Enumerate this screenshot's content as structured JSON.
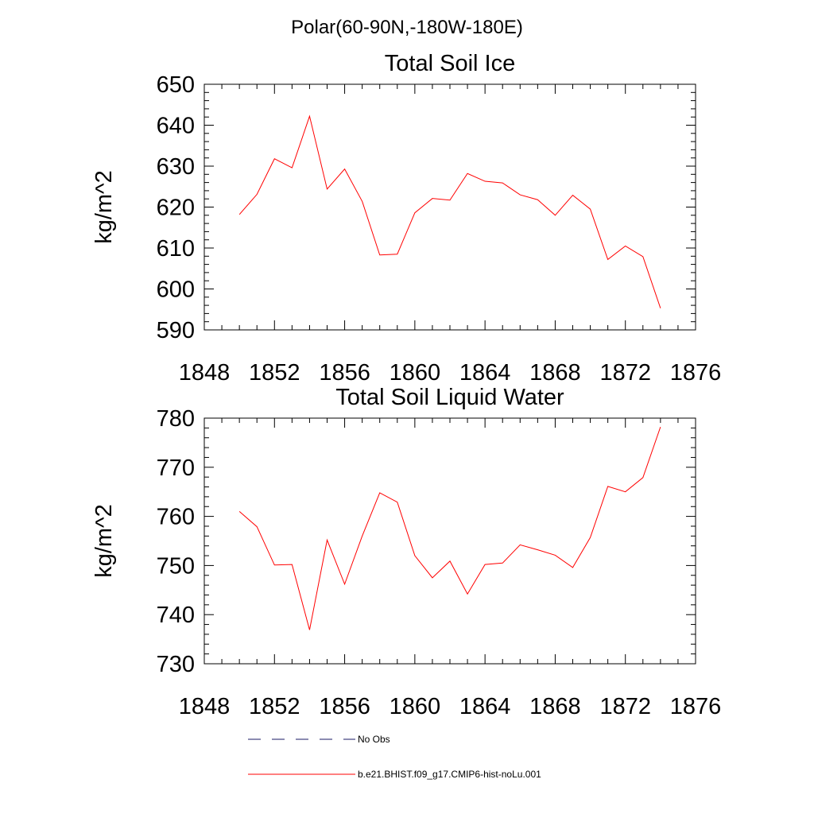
{
  "figure": {
    "title": "Polar(60-90N,-180W-180E)"
  },
  "chart_data": [
    {
      "type": "line",
      "title": "Total Soil Ice",
      "xlabel": "",
      "ylabel": "kg/m^2",
      "xlim": [
        1848,
        1876
      ],
      "ylim": [
        590,
        650
      ],
      "x_ticks": [
        1848,
        1852,
        1856,
        1860,
        1864,
        1868,
        1872,
        1876
      ],
      "y_ticks": [
        590,
        600,
        610,
        620,
        630,
        640,
        650
      ],
      "grid": false,
      "x": [
        1850,
        1851,
        1852,
        1853,
        1854,
        1855,
        1856,
        1857,
        1858,
        1859,
        1860,
        1861,
        1862,
        1863,
        1864,
        1865,
        1866,
        1867,
        1868,
        1869,
        1870,
        1871,
        1872,
        1873,
        1874
      ],
      "series": [
        {
          "name": "b.e21.BHIST.f09_g17.CMIP6-hist-noLu.001",
          "color": "#ff0000",
          "values": [
            618.2,
            623.1,
            631.8,
            629.6,
            642.2,
            624.4,
            629.3,
            621.4,
            608.3,
            608.5,
            618.6,
            622.1,
            621.7,
            628.2,
            626.3,
            625.9,
            623.0,
            621.8,
            618.0,
            622.9,
            619.5,
            607.2,
            610.5,
            607.9,
            595.3
          ]
        }
      ]
    },
    {
      "type": "line",
      "title": "Total Soil Liquid Water",
      "xlabel": "",
      "ylabel": "kg/m^2",
      "xlim": [
        1848,
        1876
      ],
      "ylim": [
        730,
        780
      ],
      "x_ticks": [
        1848,
        1852,
        1856,
        1860,
        1864,
        1868,
        1872,
        1876
      ],
      "y_ticks": [
        730,
        740,
        750,
        760,
        770,
        780
      ],
      "grid": false,
      "x": [
        1850,
        1851,
        1852,
        1853,
        1854,
        1855,
        1856,
        1857,
        1858,
        1859,
        1860,
        1861,
        1862,
        1863,
        1864,
        1865,
        1866,
        1867,
        1868,
        1869,
        1870,
        1871,
        1872,
        1873,
        1874
      ],
      "series": [
        {
          "name": "b.e21.BHIST.f09_g17.CMIP6-hist-noLu.001",
          "color": "#ff0000",
          "values": [
            761.0,
            757.9,
            750.1,
            750.2,
            736.9,
            755.2,
            746.2,
            756.0,
            764.8,
            762.9,
            752.0,
            747.5,
            750.9,
            744.2,
            750.2,
            750.5,
            754.2,
            753.2,
            752.1,
            749.6,
            755.7,
            766.1,
            765.0,
            767.9,
            778.2
          ]
        }
      ]
    }
  ],
  "legend": {
    "placement": "bottom",
    "entries": [
      {
        "label": "No Obs",
        "style": "dashed",
        "color": "#1a1a66"
      },
      {
        "label": "b.e21.BHIST.f09_g17.CMIP6-hist-noLu.001",
        "style": "solid",
        "color": "#ff0000"
      }
    ]
  }
}
